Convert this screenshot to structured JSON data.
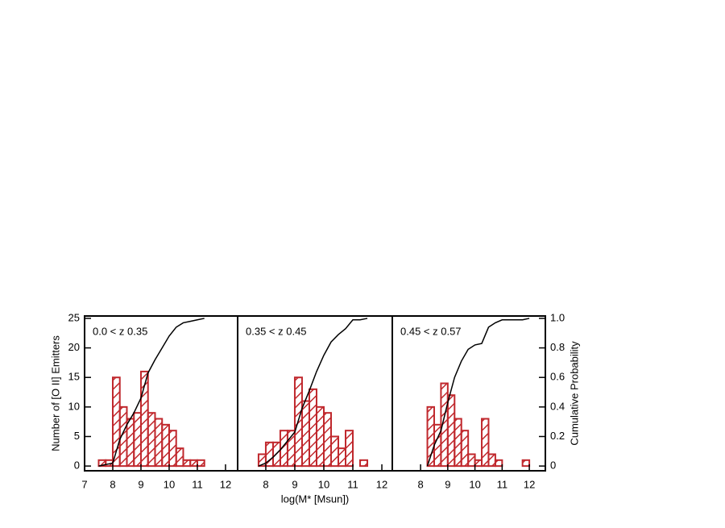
{
  "chart_data": [
    {
      "type": "histogram",
      "annotation": "0.0 < z 0.35",
      "ylabel": "Number of [O II] Emitters",
      "color": "#c0282d",
      "bins": [
        7.5,
        7.75,
        8.0,
        8.25,
        8.5,
        8.75,
        9.0,
        9.25,
        9.5,
        9.75,
        10.0,
        10.25,
        10.5,
        10.75,
        11.0,
        11.25
      ],
      "values": [
        1,
        1,
        15,
        10,
        8,
        9,
        16,
        9,
        8,
        7,
        6,
        3,
        1,
        1,
        1
      ],
      "cumulative": {
        "x": [
          7.5,
          7.75,
          8.0,
          8.25,
          8.5,
          8.75,
          9.0,
          9.25,
          9.5,
          9.75,
          10.0,
          10.25,
          10.5,
          10.75,
          11.0,
          11.25
        ],
        "values": [
          0,
          0.01,
          0.02,
          0.18,
          0.28,
          0.36,
          0.46,
          0.63,
          0.72,
          0.8,
          0.88,
          0.94,
          0.97,
          0.98,
          0.99,
          1.0
        ],
        "axis": "y2",
        "color": "#000000"
      },
      "xlim": [
        7,
        12.43
      ],
      "xticks": [
        7,
        8,
        9,
        10,
        11,
        12
      ],
      "ylim": [
        -0.8,
        25.4
      ],
      "yticks": [
        0,
        5,
        10,
        15,
        20,
        25
      ],
      "y2lim": [
        -0.032,
        1.016
      ]
    },
    {
      "type": "histogram",
      "annotation": "0.35 < z 0.45",
      "xlabel": "log(M* [Msun])",
      "color": "#c0282d",
      "bins": [
        7.75,
        8.0,
        8.25,
        8.5,
        8.75,
        9.0,
        9.25,
        9.5,
        9.75,
        10.0,
        10.25,
        10.5,
        10.75,
        11.0,
        11.25,
        11.5
      ],
      "values": [
        2,
        4,
        4,
        6,
        6,
        15,
        11,
        13,
        10,
        9,
        5,
        3,
        6,
        0,
        1
      ],
      "cumulative": {
        "x": [
          7.75,
          8.0,
          8.25,
          8.5,
          8.75,
          9.0,
          9.25,
          9.5,
          9.75,
          10.0,
          10.25,
          10.5,
          10.75,
          11.0,
          11.25,
          11.5
        ],
        "values": [
          0,
          0.02,
          0.06,
          0.11,
          0.17,
          0.23,
          0.39,
          0.51,
          0.64,
          0.75,
          0.84,
          0.89,
          0.93,
          0.99,
          0.99,
          1.0
        ],
        "axis": "y2",
        "color": "#000000"
      },
      "xlim": [
        7.03,
        12.36
      ],
      "xticks": [
        8,
        9,
        10,
        11,
        12
      ],
      "ylim": [
        -0.8,
        25.4
      ],
      "y2lim": [
        -0.032,
        1.016
      ]
    },
    {
      "type": "histogram",
      "annotation": "0.45 < z 0.57",
      "y2label": "Cumulative Probability",
      "color": "#c0282d",
      "bins": [
        8.25,
        8.5,
        8.75,
        9.0,
        9.25,
        9.5,
        9.75,
        10.0,
        10.25,
        10.5,
        10.75,
        11.0,
        11.25,
        11.5,
        11.75,
        12.0
      ],
      "values": [
        10,
        7,
        14,
        12,
        8,
        6,
        2,
        1,
        8,
        2,
        1,
        0,
        0,
        0,
        1
      ],
      "cumulative": {
        "x": [
          8.25,
          8.5,
          8.75,
          9.0,
          9.25,
          9.5,
          9.75,
          10.0,
          10.25,
          10.5,
          10.75,
          11.0,
          11.25,
          11.5,
          11.75,
          12.0
        ],
        "values": [
          0,
          0.14,
          0.24,
          0.43,
          0.6,
          0.71,
          0.79,
          0.82,
          0.83,
          0.94,
          0.97,
          0.99,
          0.99,
          0.99,
          0.99,
          1.0
        ],
        "axis": "y2",
        "color": "#000000"
      },
      "xlim": [
        6.96,
        12.59
      ],
      "xticks": [
        8,
        9,
        10,
        11,
        12
      ],
      "ylim": [
        -0.8,
        25.4
      ],
      "y2lim": [
        -0.032,
        1.016
      ],
      "y2ticks": [
        0,
        0.2,
        0.4,
        0.6,
        0.8,
        {
          "value": 1,
          "label": "1.0"
        }
      ]
    }
  ]
}
